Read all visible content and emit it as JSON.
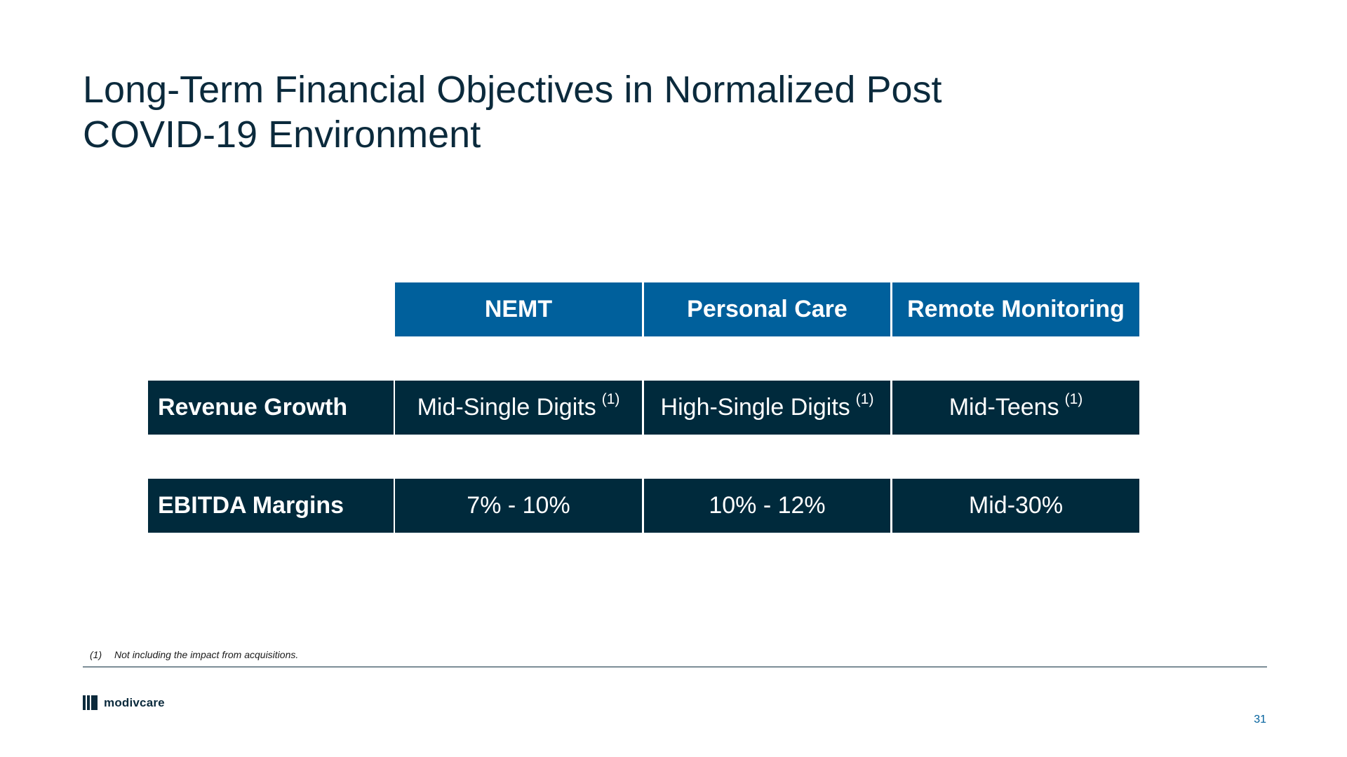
{
  "title": {
    "line1": "Long-Term Financial Objectives in Normalized Post",
    "line2": "COVID-19 Environment"
  },
  "table": {
    "columns": [
      "NEMT",
      "Personal Care",
      "Remote Monitoring"
    ],
    "rows": [
      {
        "label": "Revenue Growth",
        "values": [
          "Mid-Single Digits",
          "High-Single Digits",
          "Mid-Teens"
        ],
        "notes": [
          "(1)",
          "(1)",
          "(1)"
        ]
      },
      {
        "label": "EBITDA Margins",
        "values": [
          "7% - 10%",
          "10% - 12%",
          "Mid-30%"
        ]
      }
    ]
  },
  "footnote": {
    "number": "(1)",
    "text": "Not including the impact from acquisitions."
  },
  "logo": {
    "text": "modivcare"
  },
  "page_number": "31",
  "colors": {
    "header_blue": "#00609c",
    "dark_navy": "#002a3c",
    "title_text": "#0b2a3c"
  }
}
